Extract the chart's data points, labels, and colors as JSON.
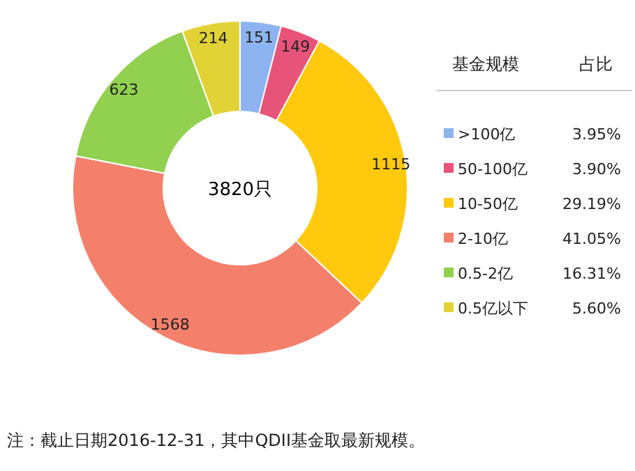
{
  "chart_data": {
    "type": "donut",
    "legend_title": "基金规模",
    "legend": "right",
    "data_labels": true,
    "categories": [
      ">100亿",
      "50-100亿",
      "10-50亿",
      "2-10亿",
      "0.5-2亿",
      "0.5亿以下"
    ],
    "values": [
      151,
      149,
      1115,
      1568,
      623,
      214
    ],
    "colors": [
      "#8db4f0",
      "#e8537a",
      "#ffc90e",
      "#f4806c",
      "#92d050",
      "#e1d336"
    ],
    "annotations": [
      "3820只",
      "占比",
      "3.95%",
      "3.90%",
      "29.19%",
      "41.05%",
      "16.31%",
      "5.60%",
      "注：截止日期2016-12-31，其中QDII基金取最新规模。"
    ]
  }
}
